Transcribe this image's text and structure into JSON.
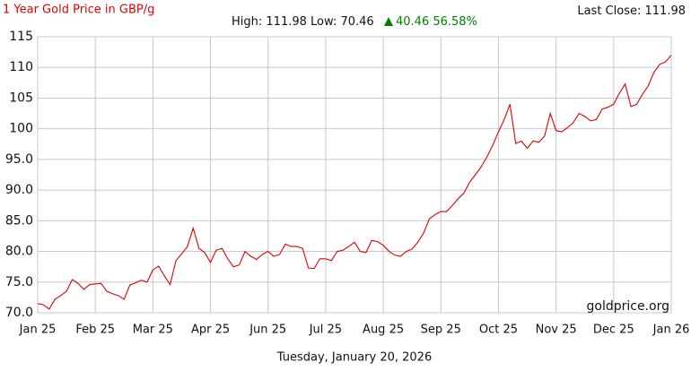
{
  "chart_data": {
    "type": "line",
    "title": "1 Year Gold Price in GBP/g",
    "title_color": "#e00000",
    "last_close_label": "Last Close:",
    "last_close": 111.98,
    "high_label": "High:",
    "high": 111.98,
    "low_label": "Low:",
    "low": 70.46,
    "change": 40.46,
    "change_pct": {
      "value": 56.58,
      "label": "56.58%"
    },
    "change_color": "#008000",
    "watermark": "goldprice.org",
    "xlabel": "Tuesday, January 20, 2026",
    "grid": true,
    "xlim": [
      0,
      110
    ],
    "xticks": [
      {
        "value": 0,
        "label": "Jan 25"
      },
      {
        "value": 10,
        "label": "Feb 25"
      },
      {
        "value": 20,
        "label": "Mar 25"
      },
      {
        "value": 30,
        "label": "Apr 25"
      },
      {
        "value": 40,
        "label": "Jun 25"
      },
      {
        "value": 50,
        "label": "Jul 25"
      },
      {
        "value": 60,
        "label": "Aug 25"
      },
      {
        "value": 70,
        "label": "Sep 25"
      },
      {
        "value": 80,
        "label": "Oct 25"
      },
      {
        "value": 90,
        "label": "Nov 25"
      },
      {
        "value": 100,
        "label": "Dec 25"
      },
      {
        "value": 110,
        "label": "Jan 26"
      }
    ],
    "ylim": [
      70,
      115
    ],
    "yticks": [
      {
        "value": 70,
        "label": "70.0"
      },
      {
        "value": 75,
        "label": "75.0"
      },
      {
        "value": 80,
        "label": "80.0"
      },
      {
        "value": 85,
        "label": "85.0"
      },
      {
        "value": 90,
        "label": "90.0"
      },
      {
        "value": 95,
        "label": "95.0"
      },
      100,
      105,
      110,
      115
    ],
    "series": [
      {
        "name": "Gold",
        "color": "#e00000",
        "values": [
          71.5,
          71.3,
          70.6,
          72.2,
          72.8,
          73.5,
          75.4,
          74.8,
          73.8,
          74.6,
          74.7,
          74.8,
          73.5,
          73.1,
          72.8,
          72.2,
          74.5,
          74.9,
          75.3,
          75.0,
          77.0,
          77.6,
          76.0,
          74.6,
          78.5,
          79.6,
          80.8,
          83.8,
          80.5,
          79.8,
          78.2,
          80.2,
          80.5,
          78.8,
          77.5,
          77.8,
          80.0,
          79.2,
          78.7,
          79.5,
          80.0,
          79.2,
          79.5,
          81.2,
          80.8,
          80.8,
          80.5,
          77.3,
          77.2,
          78.8,
          78.8,
          78.5,
          80.0,
          80.2,
          80.8,
          81.5,
          80.0,
          79.8,
          81.8,
          81.6,
          81.0,
          80.0,
          79.4,
          79.2,
          80.0,
          80.4,
          81.5,
          83.0,
          85.3,
          86.0,
          86.5,
          86.5,
          87.5,
          88.6,
          89.5,
          91.3,
          92.5,
          93.8,
          95.4,
          97.3,
          99.5,
          101.5,
          104.0,
          97.6,
          98.0,
          96.8,
          98.0,
          97.8,
          98.8,
          102.5,
          99.7,
          99.5,
          100.2,
          101.0,
          102.5,
          102.0,
          101.3,
          101.5,
          103.2,
          103.5,
          104.0,
          105.8,
          107.3,
          103.6,
          104.0,
          105.6,
          107.0,
          109.2,
          110.5,
          110.9,
          111.98
        ]
      }
    ]
  }
}
